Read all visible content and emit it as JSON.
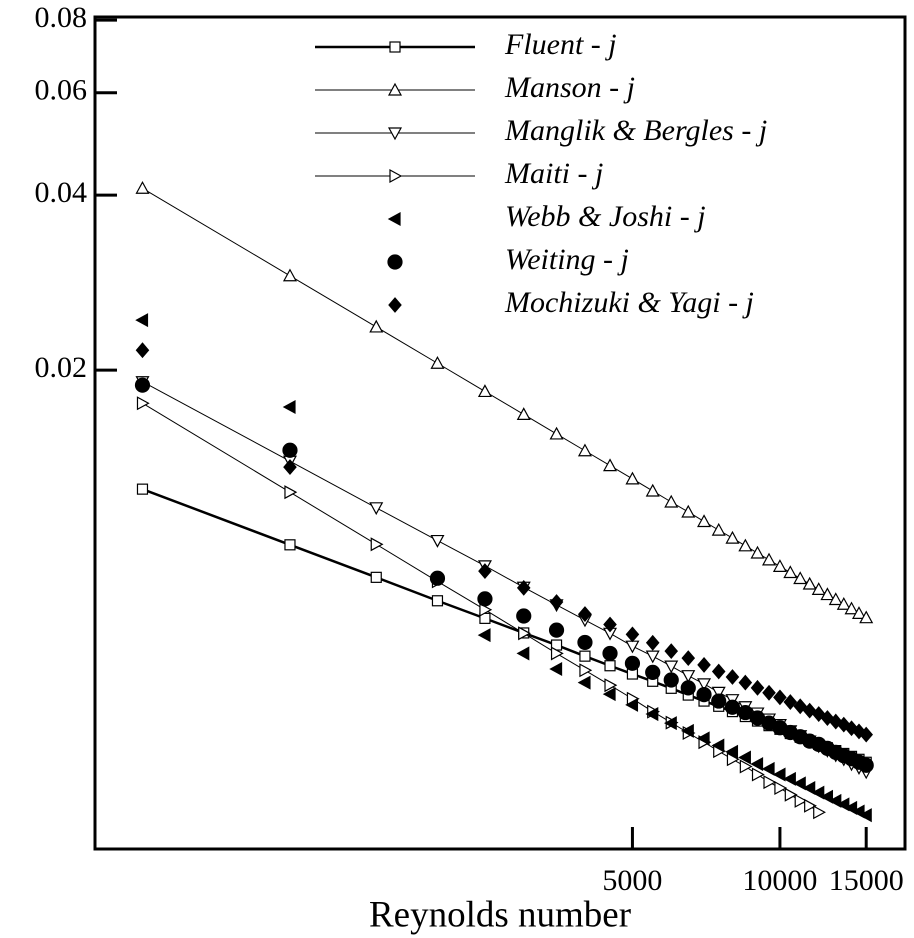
{
  "chart_data": {
    "type": "line",
    "x_label": "Reynolds number",
    "log_x": true,
    "log_y": true,
    "xlim": [
      400,
      18000
    ],
    "ylim": [
      0.003,
      0.081
    ],
    "xticks": [
      5000,
      10000,
      15000
    ],
    "yticks": [
      0.02,
      0.04,
      0.06,
      0.08
    ],
    "x": [
      500,
      1000,
      1500,
      2000,
      2500,
      3000,
      3500,
      4000,
      4500,
      5000,
      5500,
      6000,
      6500,
      7000,
      7500,
      8000,
      8500,
      9000,
      9500,
      10000,
      10500,
      11000,
      11500,
      12000,
      12500,
      13000,
      13500,
      14000,
      14500,
      15000
    ],
    "series": [
      {
        "name": "Fluent - j",
        "color": "#000000",
        "line": true,
        "line_width": 2.5,
        "marker": "square",
        "filled": false,
        "values": [
          0.01248,
          0.01001,
          0.0088,
          0.00802,
          0.00748,
          0.00706,
          0.00673,
          0.00644,
          0.0062,
          0.006,
          0.00583,
          0.00567,
          0.00552,
          0.00539,
          0.00528,
          0.00517,
          0.00507,
          0.00498,
          0.00489,
          0.00482,
          0.00474,
          0.00467,
          0.0046,
          0.00454,
          0.00448,
          0.00443,
          0.00438,
          0.00433,
          0.00428,
          0.00423
        ]
      },
      {
        "name": "Manson - j",
        "color": "#000000",
        "line": true,
        "line_width": 1,
        "marker": "triangle-up",
        "filled": false,
        "values": [
          0.0411,
          0.02906,
          0.02373,
          0.02055,
          0.01838,
          0.01678,
          0.01553,
          0.01453,
          0.0137,
          0.013,
          0.01239,
          0.01186,
          0.0114,
          0.01098,
          0.01061,
          0.01028,
          0.00997,
          0.00969,
          0.00943,
          0.00919,
          0.00897,
          0.00876,
          0.00857,
          0.00839,
          0.00822,
          0.00806,
          0.00791,
          0.00777,
          0.00763,
          0.0075
        ]
      },
      {
        "name": "Manglik & Bergles - j",
        "color": "#000000",
        "line": true,
        "line_width": 1,
        "marker": "triangle-down",
        "filled": false,
        "values": [
          0.0191,
          0.01394,
          0.01159,
          0.01018,
          0.00921,
          0.00846,
          0.00789,
          0.00743,
          0.00705,
          0.0067,
          0.00644,
          0.00619,
          0.00596,
          0.00577,
          0.00558,
          0.00542,
          0.00527,
          0.00514,
          0.00502,
          0.00491,
          0.00479,
          0.0047,
          0.0046,
          0.00451,
          0.00443,
          0.00435,
          0.00428,
          0.0042,
          0.00414,
          0.00407
        ]
      },
      {
        "name": "Maiti - j",
        "color": "#000000",
        "line": true,
        "line_width": 1,
        "marker": "triangle-right",
        "filled": false,
        "values": [
          0.01754,
          0.01233,
          0.01003,
          0.00866,
          0.00774,
          0.00705,
          0.00651,
          0.00609,
          0.00574,
          0.00544,
          0.00517,
          0.00495,
          0.00475,
          0.00458,
          0.00442,
          0.00428,
          0.00416,
          0.00403,
          0.00391,
          0.00382,
          0.00372,
          0.00363,
          0.00356,
          0.00347,
          null,
          null,
          null,
          null,
          null,
          null
        ]
      },
      {
        "name": "Webb & Joshi - j",
        "color": "#000000",
        "line": false,
        "marker": "triangle-left",
        "filled": true,
        "values": [
          0.02438,
          0.01728,
          null,
          null,
          0.007,
          0.00651,
          0.00612,
          0.0058,
          0.00554,
          0.00531,
          0.00512,
          0.00494,
          0.00479,
          0.00465,
          0.00452,
          0.00441,
          0.00431,
          0.0042,
          0.00412,
          0.00403,
          0.00396,
          0.00389,
          0.00382,
          0.00375,
          0.00369,
          0.00363,
          0.00358,
          0.00353,
          0.00348,
          0.00343
        ]
      },
      {
        "name": "Weiting - j",
        "color": "#000000",
        "line": false,
        "marker": "circle",
        "filled": true,
        "values": [
          0.01884,
          0.01456,
          null,
          0.00877,
          0.00808,
          0.00755,
          0.00714,
          0.0068,
          0.00651,
          0.00626,
          0.00604,
          0.00586,
          0.00568,
          0.00553,
          0.00539,
          0.00526,
          0.00515,
          0.00504,
          0.00494,
          0.00485,
          0.00476,
          0.00468,
          0.0046,
          0.00454,
          0.00447,
          0.0044,
          0.00434,
          0.00429,
          0.00423,
          0.00418
        ]
      },
      {
        "name": "Mochizuki & Yagi - j",
        "color": "#000000",
        "line": false,
        "marker": "diamond",
        "filled": true,
        "values": [
          0.02164,
          0.01362,
          null,
          null,
          0.00902,
          0.00844,
          0.00798,
          0.00761,
          0.0073,
          0.00702,
          0.00679,
          0.00657,
          0.00639,
          0.00622,
          0.00606,
          0.00593,
          0.0058,
          0.00568,
          0.00557,
          0.00547,
          0.00537,
          0.00528,
          0.00519,
          0.00512,
          0.00504,
          0.00497,
          0.00491,
          0.00484,
          0.00478,
          0.00472
        ]
      }
    ]
  }
}
